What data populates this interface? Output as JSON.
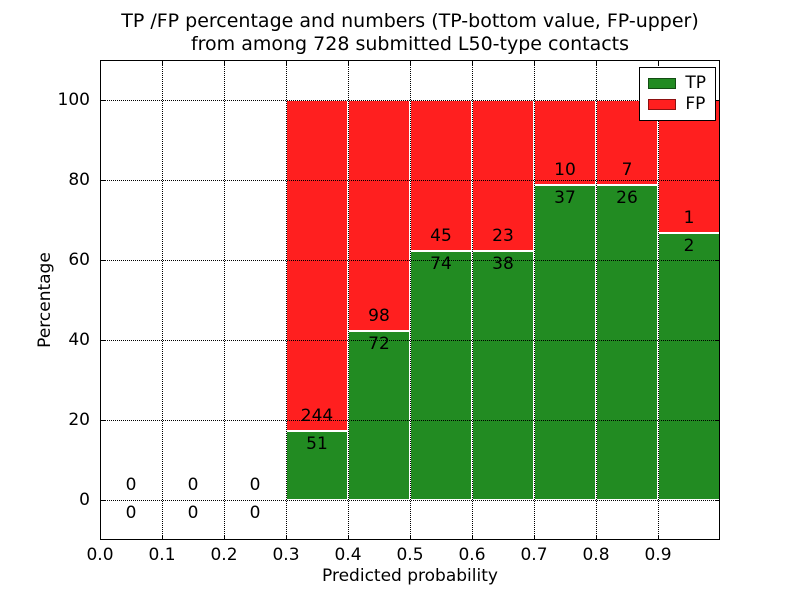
{
  "chart_data": {
    "type": "bar",
    "stacked": true,
    "title_line1": "TP /FP percentage and numbers (TP-bottom value, FP-upper)",
    "title_line2": "from among 728 submitted L50-type contacts",
    "xlabel": "Predicted probability",
    "ylabel": "Percentage",
    "total_contacts": 728,
    "xlim": [
      0.0,
      1.0
    ],
    "ylim": [
      -10,
      110
    ],
    "x_ticks": [
      0.0,
      0.1,
      0.2,
      0.3,
      0.4,
      0.5,
      0.6,
      0.7,
      0.8,
      0.9
    ],
    "y_ticks": [
      0,
      20,
      40,
      60,
      80,
      100
    ],
    "grid": "dotted",
    "bar_note": "each bar normalized to 100%, green TP share at bottom, red FP share on top; counts annotated at the TP/FP boundary",
    "colors": {
      "tp": "#228B22",
      "fp": "#FF1F1F"
    },
    "legend": {
      "position": "upper right",
      "entries": [
        {
          "label": "TP"
        },
        {
          "label": "FP"
        }
      ]
    },
    "bins": [
      {
        "x0": 0.0,
        "x1": 0.1,
        "tp": 0,
        "fp": 0
      },
      {
        "x0": 0.1,
        "x1": 0.2,
        "tp": 0,
        "fp": 0
      },
      {
        "x0": 0.2,
        "x1": 0.3,
        "tp": 0,
        "fp": 0
      },
      {
        "x0": 0.3,
        "x1": 0.4,
        "tp": 51,
        "fp": 244
      },
      {
        "x0": 0.4,
        "x1": 0.5,
        "tp": 72,
        "fp": 98
      },
      {
        "x0": 0.5,
        "x1": 0.6,
        "tp": 74,
        "fp": 45
      },
      {
        "x0": 0.6,
        "x1": 0.7,
        "tp": 38,
        "fp": 23
      },
      {
        "x0": 0.7,
        "x1": 0.8,
        "tp": 37,
        "fp": 10
      },
      {
        "x0": 0.8,
        "x1": 0.9,
        "tp": 26,
        "fp": 7
      },
      {
        "x0": 0.9,
        "x1": 1.0,
        "tp": 2,
        "fp": 1
      }
    ]
  }
}
